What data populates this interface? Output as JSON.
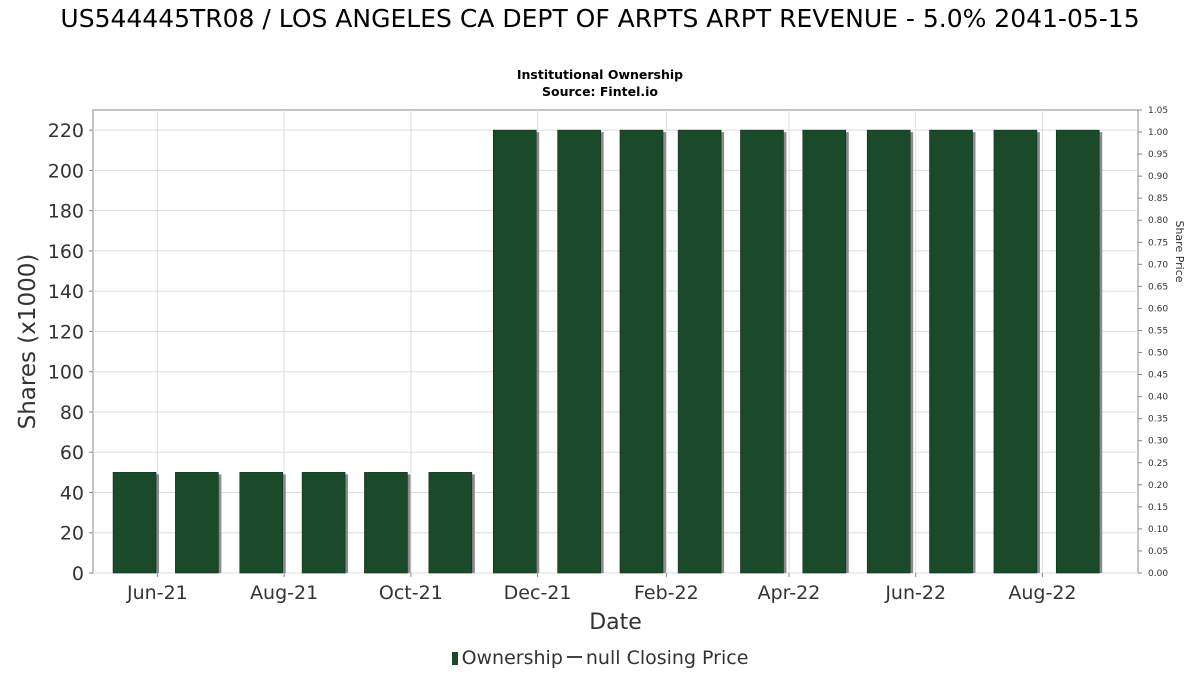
{
  "header": {
    "title": "US544445TR08 / LOS ANGELES CA DEPT OF ARPTS ARPT REVENUE - 5.0% 2041-05-15",
    "subtitle": "Institutional Ownership",
    "source": "Source: Fintel.io"
  },
  "legend": {
    "ownership_label": "Ownership",
    "price_label": "null Closing Price"
  },
  "colors": {
    "bar": "#1a4a2a",
    "bar_shadow": "#8c8c8c",
    "grid": "#dddddd",
    "axis": "#888888"
  },
  "chart_data": {
    "type": "bar",
    "xlabel": "Date",
    "ylabel": "Shares (x1000)",
    "y2label": "Share Price",
    "ylim": [
      0,
      230
    ],
    "y_ticks": [
      0,
      20,
      40,
      60,
      80,
      100,
      120,
      140,
      160,
      180,
      200,
      220
    ],
    "y2lim": [
      0,
      1.05
    ],
    "y2_ticks": [
      "0.00",
      "0.05",
      "0.10",
      "0.15",
      "0.20",
      "0.25",
      "0.30",
      "0.35",
      "0.40",
      "0.45",
      "0.50",
      "0.55",
      "0.60",
      "0.65",
      "0.70",
      "0.75",
      "0.80",
      "0.85",
      "0.90",
      "0.95",
      "1.00",
      "1.05"
    ],
    "x_start": "2021-05-01",
    "x_end": "2022-09-16",
    "x_ticks": [
      {
        "label": "Jun-21",
        "date": "2021-06-01"
      },
      {
        "label": "Aug-21",
        "date": "2021-08-01"
      },
      {
        "label": "Oct-21",
        "date": "2021-10-01"
      },
      {
        "label": "Dec-21",
        "date": "2021-12-01"
      },
      {
        "label": "Feb-22",
        "date": "2022-02-01"
      },
      {
        "label": "Apr-22",
        "date": "2022-04-01"
      },
      {
        "label": "Jun-22",
        "date": "2022-06-01"
      },
      {
        "label": "Aug-22",
        "date": "2022-08-01"
      }
    ],
    "series": [
      {
        "name": "Ownership",
        "x": [
          "2021-05-21",
          "2021-06-20",
          "2021-07-21",
          "2021-08-20",
          "2021-09-19",
          "2021-10-20",
          "2021-11-20",
          "2021-12-21",
          "2022-01-20",
          "2022-02-17",
          "2022-03-19",
          "2022-04-18",
          "2022-05-19",
          "2022-06-18",
          "2022-07-19",
          "2022-08-18"
        ],
        "values": [
          50,
          50,
          50,
          50,
          50,
          50,
          220,
          220,
          220,
          220,
          220,
          220,
          220,
          220,
          220,
          220
        ]
      }
    ],
    "grid": true,
    "legend_position": "bottom"
  }
}
